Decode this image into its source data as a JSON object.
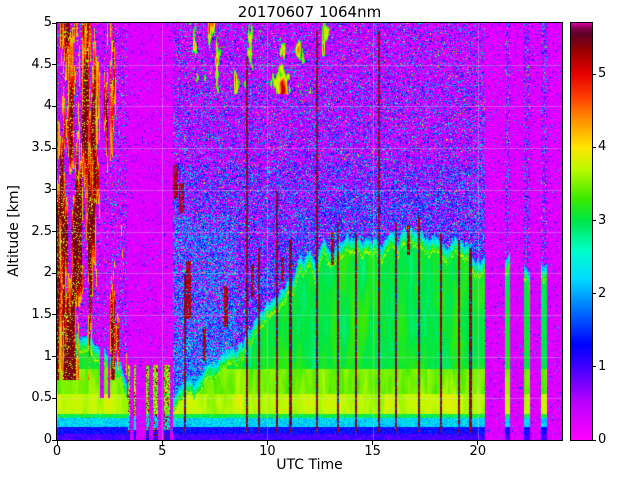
{
  "chart_data": {
    "type": "heatmap",
    "title": "20170607 1064nm",
    "xlabel": "UTC Time",
    "ylabel": "Altitude [km]",
    "xlim": [
      0,
      24
    ],
    "ylim": [
      0,
      5
    ],
    "xticks": [
      0,
      5,
      10,
      15,
      20
    ],
    "yticks": [
      0,
      0.5,
      1,
      1.5,
      2,
      2.5,
      3,
      3.5,
      4,
      4.5,
      5
    ],
    "grid": true,
    "colorbar": {
      "vmin": 0,
      "vmax": 5.7,
      "ticks": [
        0,
        1,
        2,
        3,
        4,
        5
      ],
      "position": "right"
    },
    "colormap_stops": [
      [
        0.0,
        "#ff00ff"
      ],
      [
        0.5,
        "#be00ff"
      ],
      [
        1.0,
        "#4000ff"
      ],
      [
        1.3,
        "#0000ff"
      ],
      [
        1.8,
        "#0078ff"
      ],
      [
        2.2,
        "#00dcff"
      ],
      [
        2.6,
        "#00ffc8"
      ],
      [
        3.0,
        "#00e646"
      ],
      [
        3.3,
        "#3ceb00"
      ],
      [
        3.7,
        "#befa00"
      ],
      [
        4.0,
        "#ffe600"
      ],
      [
        4.35,
        "#ff9600"
      ],
      [
        4.7,
        "#ff3c00"
      ],
      [
        5.0,
        "#e60000"
      ],
      [
        5.3,
        "#a00000"
      ],
      [
        5.55,
        "#5f0026"
      ],
      [
        5.64,
        "#8c0050"
      ],
      [
        5.7,
        "#e600b4"
      ]
    ],
    "boundary_layer": {
      "times": [
        0,
        0.5,
        1.0,
        1.5,
        2.0,
        2.5,
        3.0,
        3.4,
        5.5,
        6,
        7,
        8,
        9,
        10,
        11,
        12,
        13,
        14,
        15,
        16,
        17,
        18,
        19,
        20,
        20.3,
        24
      ],
      "top_km": [
        1.45,
        1.4,
        1.3,
        1.25,
        1.1,
        1.0,
        0.9,
        0.6,
        0.55,
        0.7,
        0.85,
        1.05,
        1.3,
        1.6,
        1.95,
        2.2,
        2.35,
        2.45,
        2.4,
        2.45,
        2.5,
        2.4,
        2.3,
        2.25,
        2.2,
        2.0
      ],
      "core_value": 3.05,
      "lower_value": 3.7
    },
    "surface_layers": [
      {
        "top_km": 0.07,
        "value": 0.9
      },
      {
        "top_km": 0.16,
        "value": 1.3
      },
      {
        "top_km": 0.26,
        "value": 2.1
      },
      {
        "top_km": 0.31,
        "value": 2.9
      }
    ],
    "attenuation_gaps": [
      [
        3.38,
        5.5
      ],
      [
        20.35,
        21.28
      ],
      [
        21.52,
        22.2
      ],
      [
        22.5,
        23.02
      ],
      [
        23.27,
        24.01
      ]
    ],
    "early_convection": {
      "t_range": [
        0,
        3.45
      ],
      "base_km": 0.72,
      "value_range": [
        4.1,
        5.45
      ]
    },
    "high_clouds": {
      "t_range": [
        4.6,
        13.2
      ],
      "alt_range": [
        4.15,
        5.0
      ],
      "value_range": [
        3.1,
        5.1
      ]
    },
    "dark_blobs": [
      {
        "t": 5.55,
        "h": 3.1,
        "wt": 0.2,
        "wh": 0.2
      },
      {
        "t": 5.9,
        "h": 2.9,
        "wt": 0.12,
        "wh": 0.18
      },
      {
        "t": 6.25,
        "h": 1.8,
        "wt": 0.1,
        "wh": 0.35
      },
      {
        "t": 7.0,
        "h": 1.15,
        "wt": 0.07,
        "wh": 0.2
      },
      {
        "t": 8.05,
        "h": 1.6,
        "wt": 0.1,
        "wh": 0.25
      },
      {
        "t": 9.3,
        "h": 1.9,
        "wt": 0.08,
        "wh": 0.2
      },
      {
        "t": 10.7,
        "h": 2.05,
        "wt": 0.07,
        "wh": 0.15
      },
      {
        "t": 13.1,
        "h": 2.3,
        "wt": 0.06,
        "wh": 0.2
      },
      {
        "t": 16.7,
        "h": 2.4,
        "wt": 0.06,
        "wh": 0.18
      }
    ],
    "dark_streaks": [
      {
        "t": 6.07,
        "top": 2.0
      },
      {
        "t": 9.02,
        "top": 4.6
      },
      {
        "t": 9.6,
        "top": 2.3
      },
      {
        "t": 10.45,
        "top": 3.0
      },
      {
        "t": 11.1,
        "top": 2.4
      },
      {
        "t": 12.35,
        "top": 4.9
      },
      {
        "t": 13.35,
        "top": 2.6
      },
      {
        "t": 14.2,
        "top": 2.5
      },
      {
        "t": 15.3,
        "top": 4.9
      },
      {
        "t": 16.1,
        "top": 2.6
      },
      {
        "t": 17.2,
        "top": 2.7
      },
      {
        "t": 18.25,
        "top": 2.5
      },
      {
        "t": 19.1,
        "top": 2.4
      },
      {
        "t": 19.65,
        "top": 2.3
      }
    ],
    "noise": {
      "background_value_range": [
        0.02,
        0.52
      ],
      "blue_speckle_value_range": [
        0.7,
        2.4
      ],
      "speckle_density_early": 0.17,
      "speckle_density_mid": 0.5,
      "speckle_density_upper": 0.26
    }
  }
}
